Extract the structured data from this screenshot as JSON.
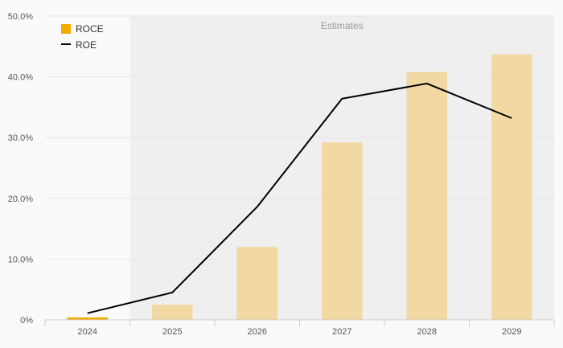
{
  "chart_data": {
    "type": "bar",
    "categories": [
      "2024",
      "2025",
      "2026",
      "2027",
      "2028",
      "2029"
    ],
    "series": [
      {
        "name": "ROCE",
        "type": "bar",
        "values": [
          0.4,
          2.5,
          12.0,
          29.2,
          40.8,
          43.7
        ]
      },
      {
        "name": "ROE",
        "type": "line",
        "values": [
          1.1,
          4.5,
          18.6,
          36.4,
          38.9,
          33.2
        ]
      }
    ],
    "ylim": [
      0,
      50
    ],
    "yticks": [
      "0%",
      "10.0%",
      "20.0%",
      "30.0%",
      "40.0%",
      "50.0%"
    ],
    "shaded_region": {
      "label": "Estimates",
      "from_category": "2025",
      "to_category": "2029"
    },
    "legend_position": "top-left",
    "grid": true,
    "colors": {
      "roce_first": "#f0ac00",
      "roce_estimate": "#f2d9a3",
      "roe_line": "#000000",
      "estimate_band": "#efefef",
      "grid": "#e6e6e6",
      "axis": "#cccccc"
    }
  }
}
